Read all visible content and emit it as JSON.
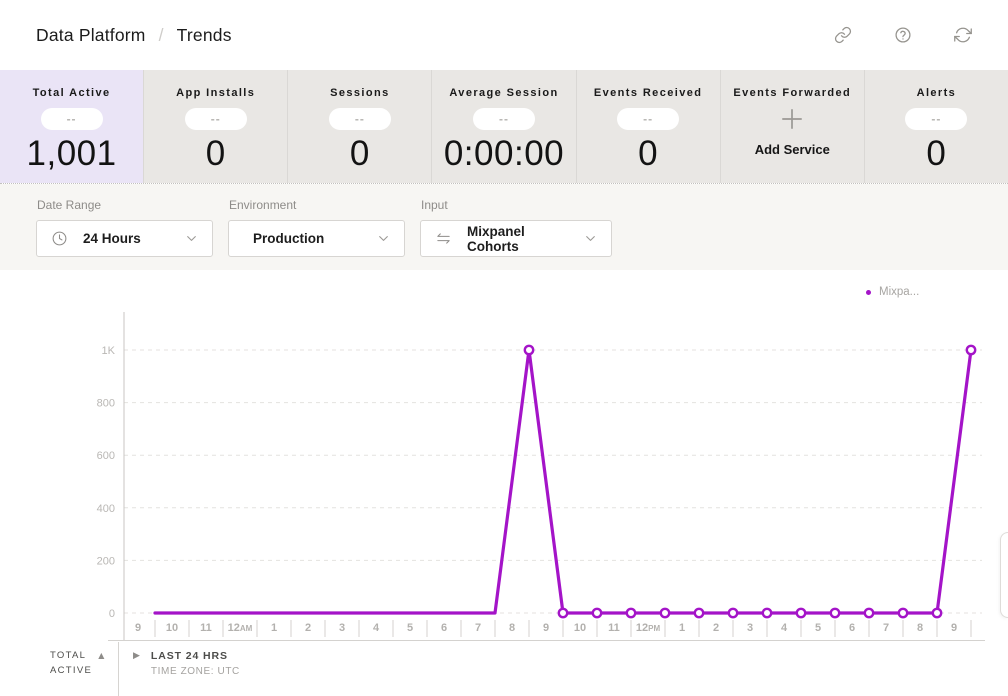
{
  "header": {
    "breadcrumb": [
      "Data Platform",
      "Trends"
    ],
    "separator": "/"
  },
  "metrics": {
    "cards": [
      {
        "label": "Total Active",
        "pill": "--",
        "value": "1,001"
      },
      {
        "label": "App Installs",
        "pill": "--",
        "value": "0"
      },
      {
        "label": "Sessions",
        "pill": "--",
        "value": "0"
      },
      {
        "label": "Average Session",
        "pill": "--",
        "value": "0:00:00"
      },
      {
        "label": "Events Received",
        "pill": "--",
        "value": "0"
      },
      {
        "label": "Events Forwarded",
        "action": "Add Service"
      },
      {
        "label": "Alerts",
        "pill": "--",
        "value": "0"
      }
    ]
  },
  "filters": {
    "groups": [
      {
        "label": "Date Range",
        "value": "24 Hours",
        "icon": "clock-icon"
      },
      {
        "label": "Environment",
        "value": "Production",
        "icon": ""
      },
      {
        "label": "Input",
        "value": "Mixpanel Cohorts",
        "icon": "swap-icon"
      }
    ]
  },
  "legend": {
    "label": "Mixpa...",
    "color": "#a414c8"
  },
  "chart_data": {
    "type": "line",
    "title": "",
    "x_labels": [
      "9",
      "10",
      "11",
      "12AM",
      "1",
      "2",
      "3",
      "4",
      "5",
      "6",
      "7",
      "8",
      "9",
      "10",
      "11",
      "12PM",
      "1",
      "2",
      "3",
      "4",
      "5",
      "6",
      "7",
      "8",
      "9"
    ],
    "series": [
      {
        "name": "Mixpa...",
        "color": "#a414c8",
        "values": [
          0,
          0,
          0,
          0,
          0,
          0,
          0,
          0,
          0,
          0,
          0,
          1000,
          0,
          0,
          0,
          0,
          0,
          0,
          0,
          0,
          0,
          0,
          0,
          0,
          1000
        ]
      }
    ],
    "y_ticks": [
      {
        "label": "1K",
        "value": 1000
      },
      {
        "label": "800",
        "value": 800
      },
      {
        "label": "600",
        "value": 600
      },
      {
        "label": "400",
        "value": 400
      },
      {
        "label": "200",
        "value": 200
      },
      {
        "label": "0",
        "value": 0
      }
    ],
    "ylim": [
      0,
      1000
    ],
    "grid": "horizontal-dashed",
    "legend_position": "top-right",
    "markers_from_index": 11
  },
  "footer": {
    "metric_line1": "TOTAL",
    "metric_line2": "ACTIVE",
    "range_label": "LAST 24 HRS",
    "timezone_label": "TIME ZONE: UTC"
  },
  "icons": {
    "sort_asc": "▲",
    "expand": "▶"
  },
  "colors": {
    "accent": "#a414c8",
    "selected_card_bg": "#eae4f6",
    "card_bg": "#e9e7e4"
  }
}
